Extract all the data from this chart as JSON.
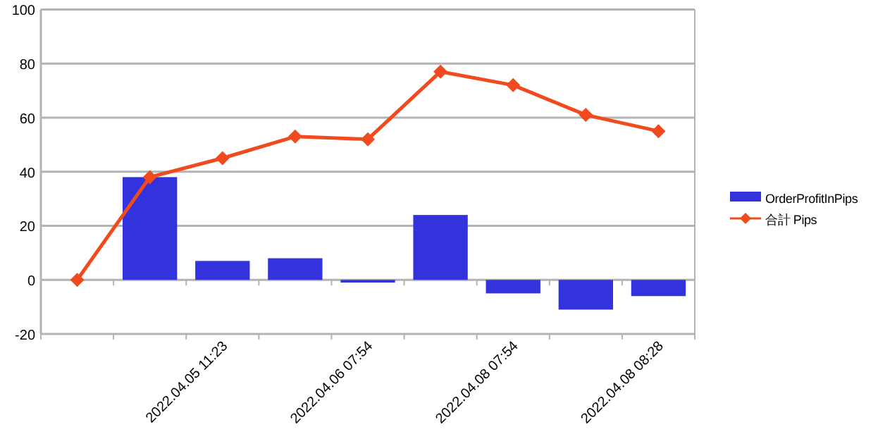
{
  "chart_data": {
    "type": "bar",
    "categories": [
      null,
      null,
      "2022.04.05 11:23",
      null,
      "2022.04.06 07:54",
      null,
      "2022.04.08 07:54",
      null,
      "2022.04.08 08:28"
    ],
    "series": [
      {
        "name": "OrderProfitInPips",
        "color": "#3333dd",
        "values": [
          null,
          38,
          7,
          8,
          -1,
          24,
          -5,
          -11,
          -6
        ]
      },
      {
        "name": "合計 Pips",
        "type": "line",
        "color": "#f04a1e",
        "marker": "diamond",
        "values": [
          0,
          38,
          45,
          53,
          52,
          77,
          72,
          61,
          55
        ]
      }
    ],
    "ylim": [
      -20,
      100
    ],
    "yticks": [
      -20,
      0,
      20,
      40,
      60,
      80,
      100
    ],
    "grid": "y",
    "legend": "right"
  }
}
